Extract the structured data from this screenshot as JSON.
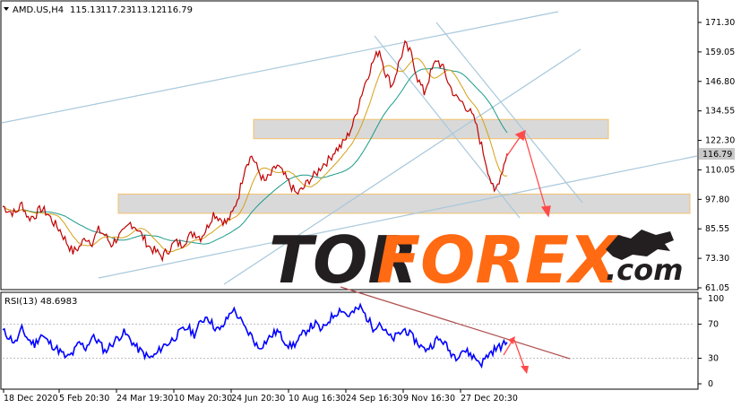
{
  "header": {
    "symbol_timeframe": "AMD.US,H4",
    "open": "115.13",
    "high": "117.23",
    "low": "113.12",
    "close": "116.79"
  },
  "current_price_label": "116.79",
  "rsi_label": "RSI(13) 48.6983",
  "watermark": {
    "part1": "TOR",
    "part2": "FOREX",
    "part3": ".com",
    "colors": {
      "dark": "#231f20",
      "accent": "#ff6a13"
    }
  },
  "colors": {
    "price_line": "#c00000",
    "rsi_line": "#0000ff",
    "ma_fast": "#d4a017",
    "ma_slow": "#1a9a8a",
    "zone_fill": "#d9d9d9",
    "zone_border": "#f5c16b",
    "trend_lines": "#a8c8dc",
    "forecast_arrow": "#ff4a4a",
    "current_price_bg": "#c8c8c8"
  },
  "chart_data": [
    {
      "type": "line",
      "title": "AMD.US,H4",
      "y_axis_labels": [
        "171.30",
        "159.05",
        "146.80",
        "134.55",
        "122.30",
        "110.05",
        "97.80",
        "85.55",
        "73.30",
        "61.05"
      ],
      "ylim": [
        61.05,
        171.3
      ],
      "x_tick_labels": [
        "18 Dec 2020",
        "5 Feb 20:30",
        "24 Mar 19:30",
        "10 May 20:30",
        "24 Jun 20:30",
        "10 Aug 16:30",
        "24 Sep 16:30",
        "9 Nov 16:30",
        "27 Dec 20:30"
      ],
      "series": [
        {
          "values": [
            95,
            93,
            92,
            96,
            90,
            91,
            94,
            92,
            88,
            85,
            80,
            76,
            78,
            82,
            80,
            85,
            83,
            79,
            82,
            84,
            88,
            86,
            82,
            78,
            76,
            74,
            77,
            80,
            79,
            82,
            84,
            82,
            86,
            92,
            90,
            88,
            92,
            100,
            112,
            116,
            110,
            105,
            108,
            112,
            108,
            104,
            100,
            102,
            106,
            108,
            112,
            114,
            118,
            120,
            124,
            130,
            140,
            148,
            155,
            160,
            150,
            145,
            154,
            162,
            158,
            148,
            142,
            150,
            156,
            152,
            145,
            140,
            138,
            135,
            130,
            120,
            110,
            100,
            108,
            116.79
          ]
        }
      ],
      "support_zone": [
        92,
        100
      ],
      "resistance_zone": [
        123,
        131
      ],
      "grid": false
    },
    {
      "type": "line",
      "title": "RSI(13) 48.6983",
      "y_axis_labels": [
        "100",
        "70",
        "30",
        "0"
      ],
      "ylim": [
        0,
        100
      ],
      "series": [
        {
          "values": [
            62,
            55,
            48,
            64,
            52,
            46,
            58,
            50,
            44,
            38,
            30,
            36,
            48,
            42,
            55,
            50,
            38,
            46,
            54,
            60,
            52,
            42,
            36,
            30,
            34,
            44,
            48,
            55,
            62,
            66,
            58,
            72,
            80,
            68,
            62,
            74,
            88,
            78,
            64,
            56,
            42,
            48,
            56,
            62,
            52,
            44,
            48,
            58,
            66,
            70,
            62,
            74,
            82,
            88,
            80,
            84,
            90,
            78,
            66,
            72,
            60,
            52,
            58,
            64,
            56,
            48,
            40,
            44,
            52,
            50,
            38,
            32,
            40,
            36,
            30,
            24,
            34,
            40,
            44,
            48.6983
          ]
        }
      ]
    }
  ]
}
